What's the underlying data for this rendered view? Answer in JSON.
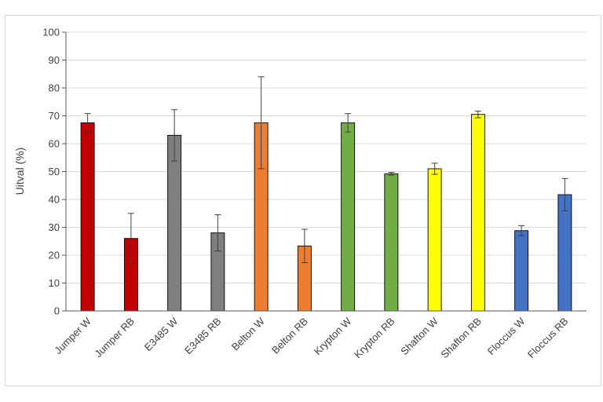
{
  "chart_data": {
    "type": "bar",
    "ylabel": "Uitval (%)",
    "xlabel": "",
    "title": "",
    "ylim": [
      0,
      100
    ],
    "yticks": [
      0,
      10,
      20,
      30,
      40,
      50,
      60,
      70,
      80,
      90,
      100
    ],
    "grid": true,
    "legend": "none",
    "error_bars": true,
    "categories": [
      "Jumper W",
      "Jumper RB",
      "E3485 W",
      "E3485 RB",
      "Belton W",
      "Belton RB",
      "Krypton W",
      "Krypton RB",
      "Shafton W",
      "Shafton RB",
      "Floccus W",
      "Floccus RB"
    ],
    "values": [
      67.5,
      26,
      63,
      28,
      67.5,
      23.3,
      67.5,
      49.2,
      51,
      70.5,
      28.8,
      41.7
    ],
    "errors": [
      3.3,
      9,
      9.2,
      6.5,
      16.5,
      6,
      3.3,
      0.5,
      2,
      1.2,
      1.8,
      5.8
    ],
    "colors": [
      "#c00000",
      "#c00000",
      "#7f7f7f",
      "#7f7f7f",
      "#ed7d31",
      "#ed7d31",
      "#70ad47",
      "#70ad47",
      "#ffff00",
      "#ffff00",
      "#4472c4",
      "#4472c4"
    ]
  }
}
